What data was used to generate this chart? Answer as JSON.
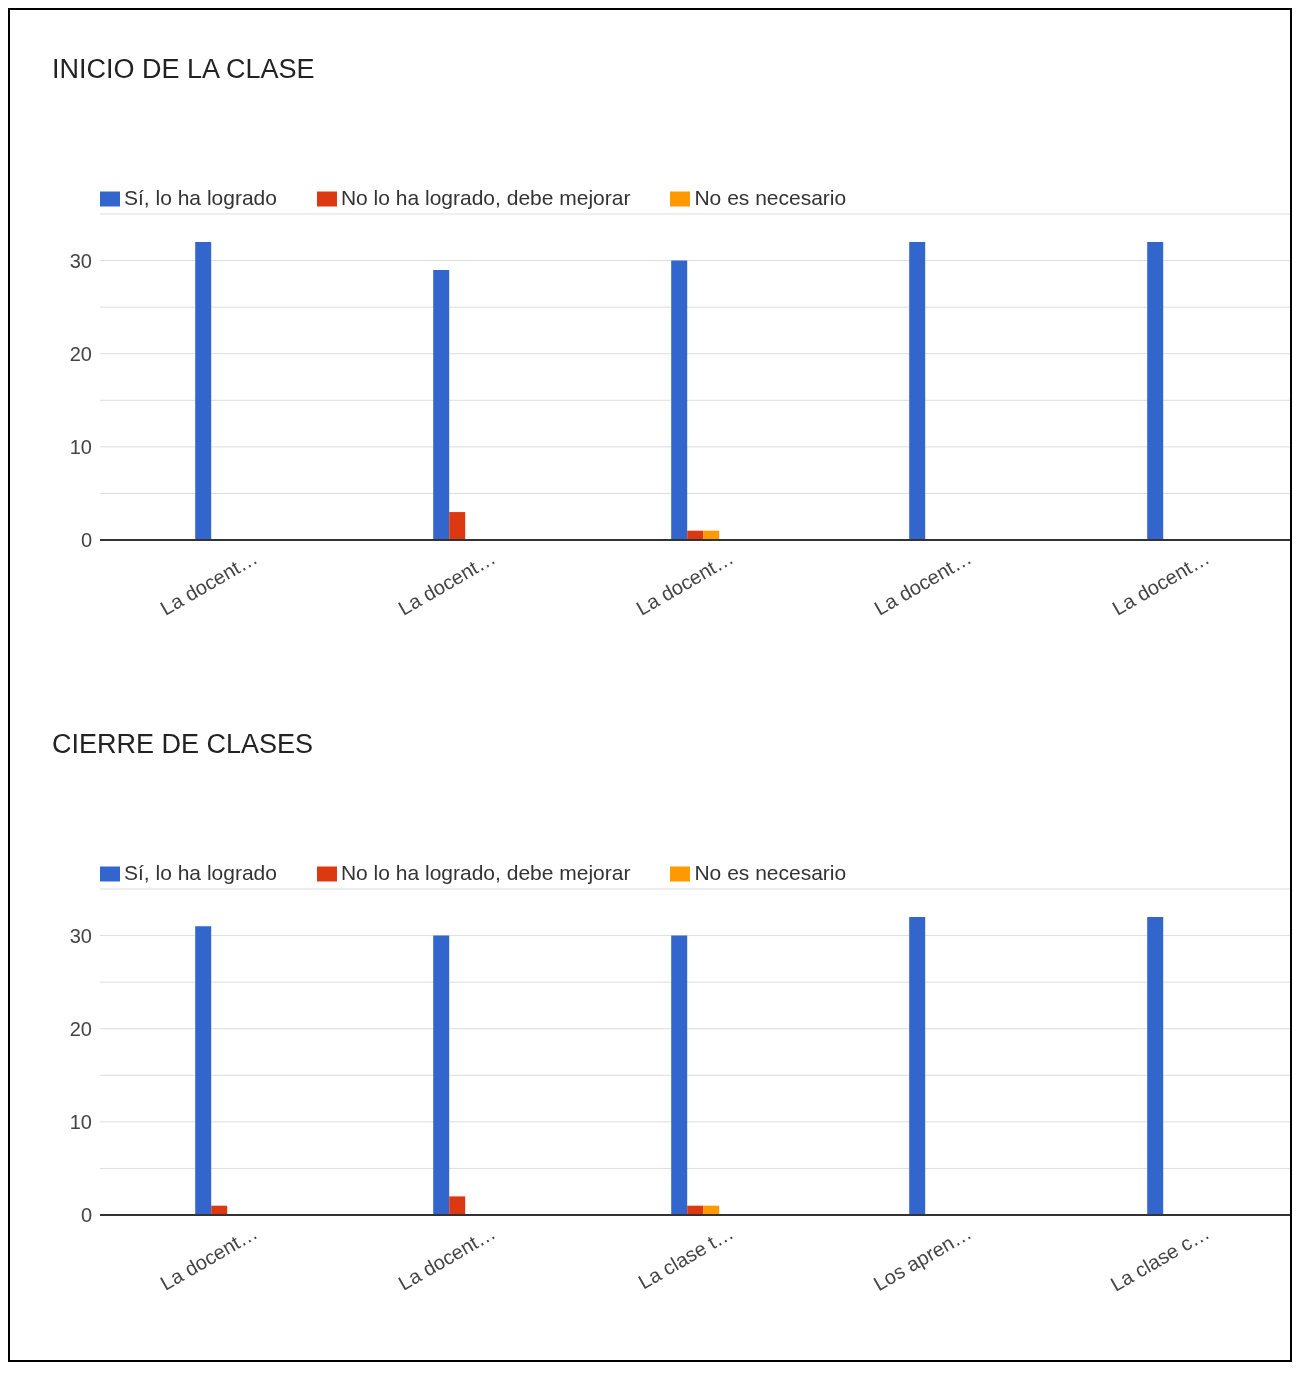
{
  "chart_data": [
    {
      "type": "bar",
      "title": "INICIO DE LA CLASE",
      "categories": [
        "La docent…",
        "La docent…",
        "La docent…",
        "La docent…",
        "La docent…"
      ],
      "series": [
        {
          "name": "Sí, lo ha logrado",
          "color": "#3366cc",
          "values": [
            32,
            29,
            30,
            32,
            32
          ]
        },
        {
          "name": "No lo ha logrado, debe mejorar",
          "color": "#dc3912",
          "values": [
            0,
            3,
            1,
            0,
            0
          ]
        },
        {
          "name": "No es necesario",
          "color": "#ff9900",
          "values": [
            0,
            0,
            1,
            0,
            0
          ]
        }
      ],
      "ylim": [
        0,
        35
      ],
      "yticks": [
        0,
        {
          "value": 5,
          "label": null
        },
        10,
        {
          "value": 15,
          "label": null
        },
        20,
        {
          "value": 25,
          "label": null
        },
        30,
        {
          "value": 35,
          "label": null
        }
      ],
      "grid": "y",
      "legend": "top left"
    },
    {
      "type": "bar",
      "title": "CIERRE DE CLASES",
      "categories": [
        "La docent…",
        "La docent…",
        "La clase t…",
        "Los apren…",
        "La clase c…"
      ],
      "series": [
        {
          "name": "Sí, lo ha logrado",
          "color": "#3366cc",
          "values": [
            31,
            30,
            30,
            32,
            32
          ]
        },
        {
          "name": "No lo ha logrado, debe mejorar",
          "color": "#dc3912",
          "values": [
            1,
            2,
            1,
            0,
            0
          ]
        },
        {
          "name": "No es necesario",
          "color": "#ff9900",
          "values": [
            0,
            0,
            1,
            0,
            0
          ]
        }
      ],
      "ylim": [
        0,
        35
      ],
      "yticks": [
        0,
        {
          "value": 5,
          "label": null
        },
        10,
        {
          "value": 15,
          "label": null
        },
        20,
        {
          "value": 25,
          "label": null
        },
        30,
        {
          "value": 35,
          "label": null
        }
      ],
      "grid": "y",
      "legend": "top left"
    }
  ]
}
